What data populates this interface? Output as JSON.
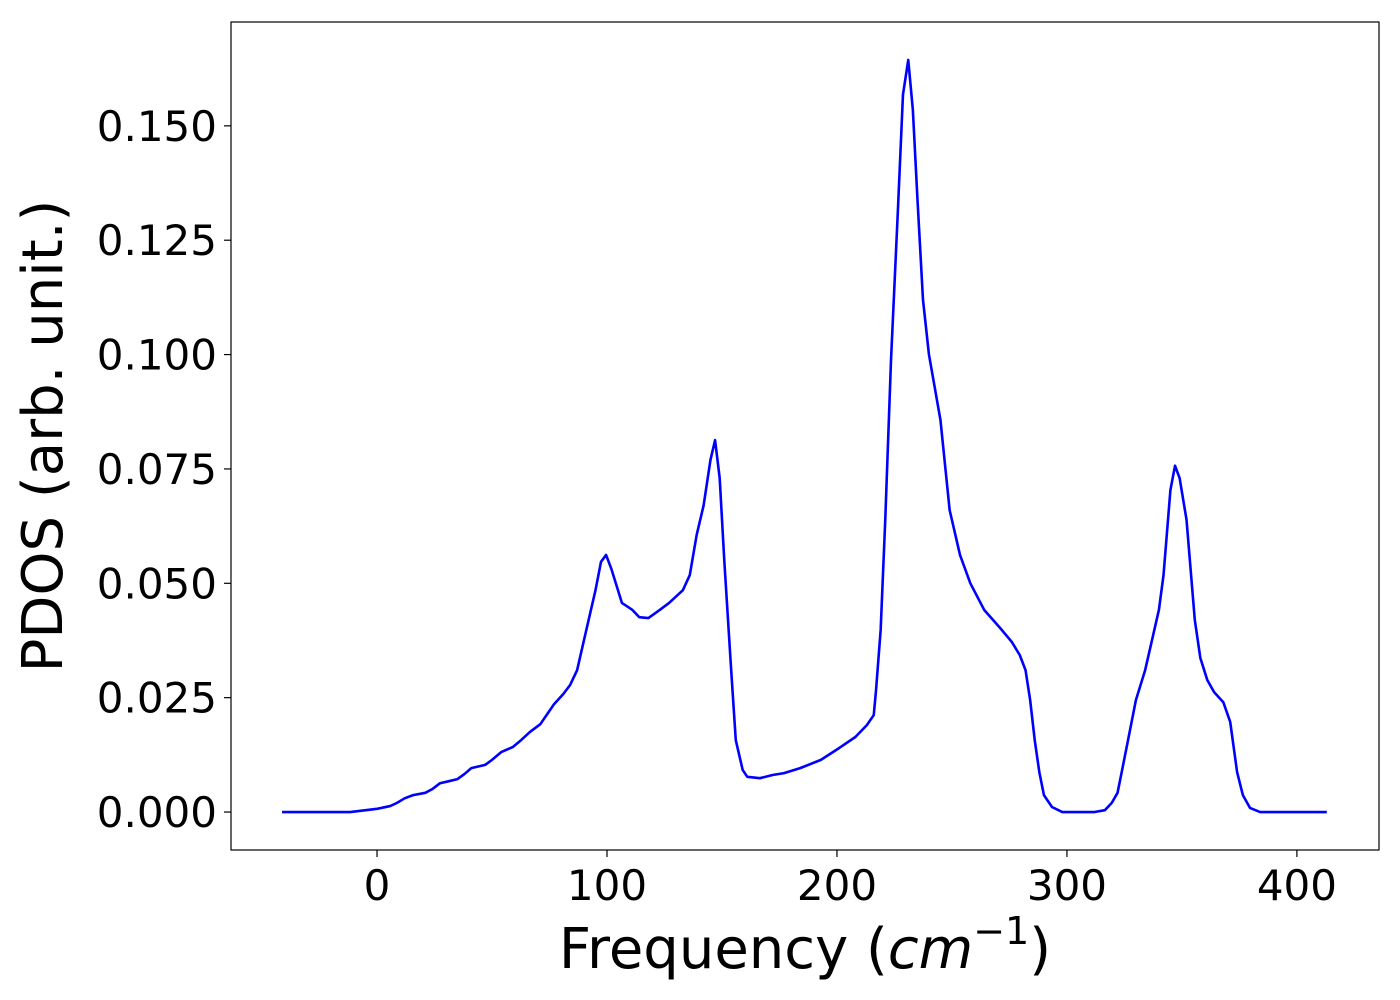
{
  "chart_data": {
    "type": "line",
    "x_label": [
      "Frequency (",
      "cm",
      "−1",
      ")"
    ],
    "y_label": "PDOS (arb. unit.)",
    "x": [
      -41.3,
      -11.7,
      0,
      5.7,
      8.7,
      12,
      15.7,
      21,
      24,
      27.4,
      31.7,
      35,
      38,
      41,
      47,
      50,
      54,
      59,
      62.6,
      66.5,
      71,
      74,
      77,
      81,
      84,
      87,
      90,
      95,
      97.4,
      99.6,
      102,
      106.5,
      111,
      114,
      118,
      123,
      127,
      133,
      136,
      139,
      142,
      145,
      147,
      149,
      151,
      154,
      156,
      159,
      161,
      166.5,
      172,
      177,
      184,
      193,
      201,
      208,
      213,
      216,
      217,
      219,
      221,
      223.5,
      226.5,
      228.7,
      231,
      233,
      235,
      237.4,
      240,
      245,
      249,
      253.5,
      258,
      264,
      271,
      276,
      279.5,
      282,
      284,
      286,
      288,
      290,
      293.5,
      298,
      312,
      316.5,
      319.5,
      322,
      324,
      327,
      330,
      334,
      337,
      340,
      342,
      345,
      347,
      349,
      352,
      355.6,
      358,
      361,
      364,
      368,
      371,
      374,
      376.5,
      379.6,
      384,
      413
    ],
    "series": [
      {
        "name": "PDOS",
        "color": "#0000ff",
        "values": [
          0,
          0,
          0.0007,
          0.0013,
          0.002,
          0.003,
          0.0037,
          0.0042,
          0.005,
          0.0063,
          0.0068,
          0.0072,
          0.0083,
          0.0096,
          0.0103,
          0.0114,
          0.0131,
          0.0142,
          0.0157,
          0.0175,
          0.0192,
          0.0214,
          0.0236,
          0.0258,
          0.0278,
          0.031,
          0.0376,
          0.0485,
          0.0547,
          0.0562,
          0.053,
          0.0457,
          0.0442,
          0.0426,
          0.0424,
          0.0442,
          0.0457,
          0.0485,
          0.0518,
          0.0606,
          0.067,
          0.077,
          0.0813,
          0.073,
          0.055,
          0.031,
          0.0157,
          0.0092,
          0.0077,
          0.0074,
          0.0081,
          0.0085,
          0.0096,
          0.0114,
          0.014,
          0.0164,
          0.019,
          0.0212,
          0.0267,
          0.0398,
          0.0639,
          0.0988,
          0.1316,
          0.1568,
          0.1644,
          0.1535,
          0.134,
          0.112,
          0.1,
          0.0857,
          0.066,
          0.0562,
          0.05,
          0.0442,
          0.0402,
          0.0372,
          0.0343,
          0.031,
          0.0245,
          0.0157,
          0.0087,
          0.0037,
          0.0011,
          0,
          0,
          0.0004,
          0.002,
          0.0042,
          0.0092,
          0.0168,
          0.0245,
          0.031,
          0.0376,
          0.0442,
          0.0518,
          0.0704,
          0.0757,
          0.073,
          0.0639,
          0.042,
          0.0337,
          0.0289,
          0.0262,
          0.024,
          0.0197,
          0.0087,
          0.0037,
          0.0009,
          0,
          0
        ]
      }
    ],
    "xlim": [
      -63.5,
      435.7
    ],
    "xticks": [
      0,
      100,
      200,
      300,
      400
    ],
    "ylim": [
      -0.0083,
      0.1727
    ],
    "yticks": [
      {
        "value": 0,
        "label": "0.000"
      },
      {
        "value": 0.025,
        "label": "0.025"
      },
      {
        "value": 0.05,
        "label": "0.050"
      },
      {
        "value": 0.075,
        "label": "0.075"
      },
      {
        "value": 0.1,
        "label": "0.100"
      },
      {
        "value": 0.125,
        "label": "0.125"
      },
      {
        "value": 0.15,
        "label": "0.150"
      }
    ],
    "grid": false
  }
}
